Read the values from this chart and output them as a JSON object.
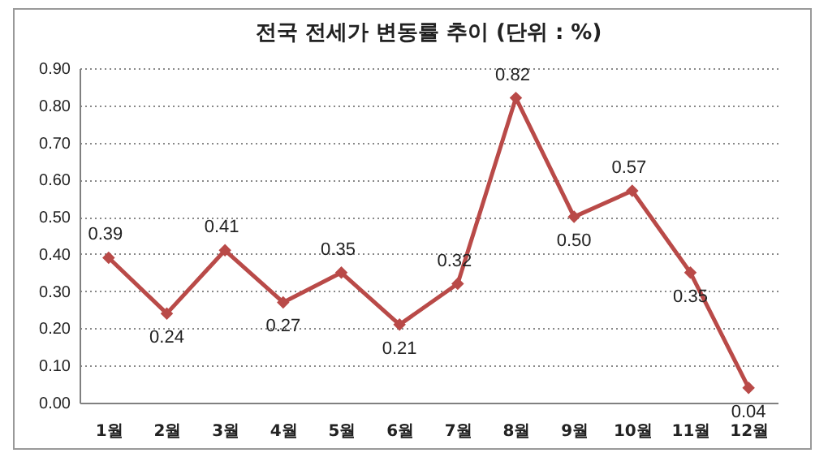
{
  "chart_data": {
    "type": "line",
    "title": "전국 전세가 변동률 추이 (단위 : %)",
    "categories": [
      "1월",
      "2월",
      "3월",
      "4월",
      "5월",
      "6월",
      "7월",
      "8월",
      "9월",
      "10월",
      "11월",
      "12월"
    ],
    "series": [
      {
        "color": "#b94a48",
        "values": [
          0.39,
          0.24,
          0.41,
          0.27,
          0.35,
          0.21,
          0.32,
          0.82,
          0.5,
          0.57,
          0.35,
          0.04
        ],
        "value_labels": [
          "0.39",
          "0.24",
          "0.41",
          "0.27",
          "0.35",
          "0.21",
          "0.32",
          "0.82",
          "0.50",
          "0.57",
          "0.35",
          "0.04"
        ]
      }
    ],
    "ylim": [
      0,
      0.9
    ],
    "yticks": [
      {
        "value": 0,
        "label": "0.00"
      },
      {
        "value": 0.1,
        "label": "0.10"
      },
      {
        "value": 0.2,
        "label": "0.20"
      },
      {
        "value": 0.3,
        "label": "0.30"
      },
      {
        "value": 0.4,
        "label": "0.40"
      },
      {
        "value": 0.5,
        "label": "0.50"
      },
      {
        "value": 0.6,
        "label": "0.60"
      },
      {
        "value": 0.7,
        "label": "0.70"
      },
      {
        "value": 0.8,
        "label": "0.80"
      },
      {
        "value": 0.9,
        "label": "0.90"
      }
    ],
    "grid": "y",
    "marker": "diamond",
    "line_style": "solid"
  }
}
